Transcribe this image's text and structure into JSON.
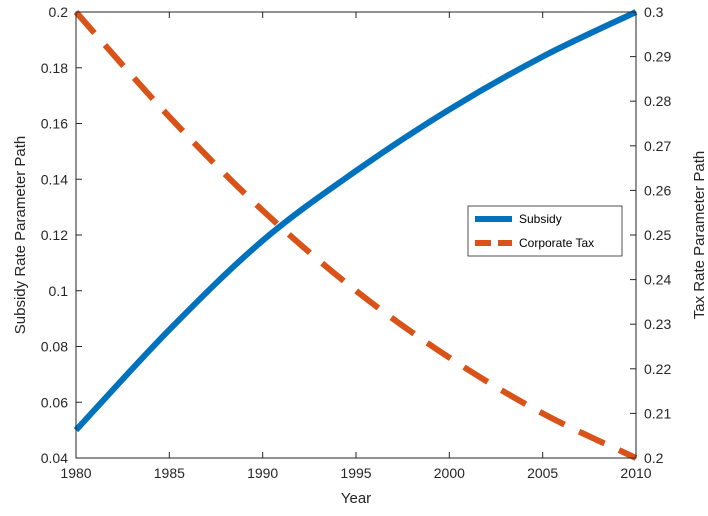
{
  "chart_data": {
    "type": "line",
    "title": "",
    "xlabel": "Year",
    "ylabel_left": "Subsidy Rate Parameter Path",
    "ylabel_right": "Tax Rate Parameter Path",
    "xlim": [
      1980,
      2010
    ],
    "ylim_left": [
      0.04,
      0.2
    ],
    "ylim_right": [
      0.2,
      0.3
    ],
    "x_ticks": [
      1980,
      1985,
      1990,
      1995,
      2000,
      2005,
      2010
    ],
    "x_tick_labels": [
      "1980",
      "1985",
      "1990",
      "1995",
      "2000",
      "2005",
      "2010"
    ],
    "y_left_ticks": [
      0.04,
      0.06,
      0.08,
      0.1,
      0.12,
      0.14,
      0.16,
      0.18,
      0.2
    ],
    "y_left_tick_labels": [
      "0.04",
      "0.06",
      "0.08",
      "0.1",
      "0.12",
      "0.14",
      "0.16",
      "0.18",
      "0.2"
    ],
    "y_right_ticks": [
      0.2,
      0.21,
      0.22,
      0.23,
      0.24,
      0.25,
      0.26,
      0.27,
      0.28,
      0.29,
      0.3
    ],
    "y_right_tick_labels": [
      "0.2",
      "0.21",
      "0.22",
      "0.23",
      "0.24",
      "0.25",
      "0.26",
      "0.27",
      "0.28",
      "0.29",
      "0.3"
    ],
    "grid": false,
    "legend_position": "right",
    "series": [
      {
        "name": "Subsidy",
        "axis": "left",
        "style": "solid",
        "color": "#0072BD",
        "x": [
          1980,
          1985,
          1990,
          1995,
          2000,
          2005,
          2010
        ],
        "values": [
          0.05,
          0.086,
          0.118,
          0.143,
          0.165,
          0.184,
          0.2
        ]
      },
      {
        "name": "Corporate Tax",
        "axis": "right",
        "style": "dashed",
        "color": "#D95319",
        "x": [
          1980,
          1985,
          1990,
          1995,
          2000,
          2005,
          2010
        ],
        "values": [
          0.3,
          0.2765,
          0.2555,
          0.2375,
          0.2225,
          0.21,
          0.2
        ]
      }
    ]
  }
}
